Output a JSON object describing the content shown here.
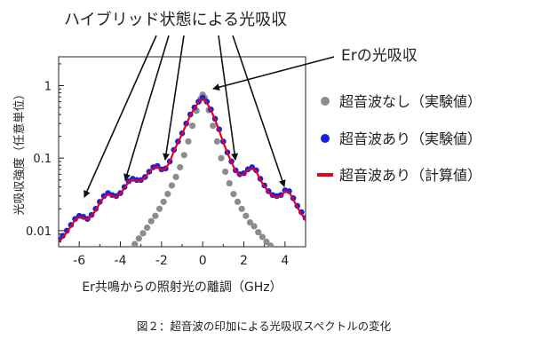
{
  "chart_data": {
    "type": "scatter",
    "annotations": {
      "hybrid": "ハイブリッド状態による光吸収",
      "er": "Erの光吸収"
    },
    "xlabel": "Er共鳴からの照射光の離調（GHz）",
    "ylabel": "光吸収強度（任意単位）",
    "x_ticks": [
      "-6",
      "-4",
      "-2",
      "0",
      "2",
      "4"
    ],
    "y_ticks": [
      "0.01",
      "0.1",
      "1"
    ],
    "xlim": [
      -7,
      5
    ],
    "ylim": [
      0.006,
      2.5
    ],
    "y_scale": "log",
    "legend_position": "right",
    "series": [
      {
        "name": "超音波なし（実験値）",
        "style": "dot",
        "color": "#8c8c8c",
        "x": [
          -3.3,
          -3.1,
          -2.9,
          -2.7,
          -2.5,
          -2.3,
          -2.1,
          -1.9,
          -1.7,
          -1.5,
          -1.3,
          -1.1,
          -0.9,
          -0.7,
          -0.5,
          -0.3,
          -0.1,
          0.0,
          0.1,
          0.3,
          0.5,
          0.7,
          0.9,
          1.1,
          1.3,
          1.5,
          1.7,
          1.9,
          2.1,
          2.3,
          2.5,
          2.7,
          2.9,
          3.1,
          3.3
        ],
        "y": [
          0.0065,
          0.0078,
          0.0092,
          0.011,
          0.0135,
          0.016,
          0.02,
          0.025,
          0.032,
          0.042,
          0.055,
          0.075,
          0.11,
          0.17,
          0.28,
          0.45,
          0.66,
          0.75,
          0.68,
          0.46,
          0.28,
          0.17,
          0.1,
          0.065,
          0.045,
          0.032,
          0.025,
          0.02,
          0.016,
          0.013,
          0.0115,
          0.0095,
          0.0082,
          0.007,
          0.0062
        ]
      },
      {
        "name": "超音波あり（実験値）",
        "style": "dot",
        "color": "#1520e0",
        "x": [
          -7.0,
          -6.8,
          -6.6,
          -6.4,
          -6.2,
          -6.0,
          -5.8,
          -5.6,
          -5.4,
          -5.2,
          -5.0,
          -4.8,
          -4.6,
          -4.4,
          -4.2,
          -4.0,
          -3.8,
          -3.6,
          -3.4,
          -3.2,
          -3.0,
          -2.8,
          -2.6,
          -2.4,
          -2.2,
          -2.0,
          -1.8,
          -1.6,
          -1.4,
          -1.2,
          -1.0,
          -0.8,
          -0.6,
          -0.4,
          -0.2,
          0.0,
          0.2,
          0.4,
          0.6,
          0.8,
          1.0,
          1.2,
          1.4,
          1.6,
          1.8,
          2.0,
          2.2,
          2.4,
          2.6,
          2.8,
          3.0,
          3.2,
          3.4,
          3.6,
          3.8,
          4.0,
          4.2,
          4.4,
          4.6,
          4.8,
          5.0
        ],
        "y": [
          0.0075,
          0.0085,
          0.01,
          0.012,
          0.0145,
          0.016,
          0.0155,
          0.0145,
          0.0165,
          0.02,
          0.025,
          0.03,
          0.033,
          0.031,
          0.03,
          0.033,
          0.04,
          0.048,
          0.052,
          0.05,
          0.05,
          0.055,
          0.065,
          0.075,
          0.078,
          0.07,
          0.072,
          0.09,
          0.13,
          0.17,
          0.22,
          0.3,
          0.4,
          0.5,
          0.6,
          0.68,
          0.6,
          0.47,
          0.35,
          0.25,
          0.17,
          0.12,
          0.09,
          0.068,
          0.06,
          0.062,
          0.07,
          0.075,
          0.068,
          0.052,
          0.042,
          0.035,
          0.031,
          0.03,
          0.031,
          0.036,
          0.035,
          0.028,
          0.022,
          0.018,
          0.015
        ]
      },
      {
        "name": "超音波あり（計算値）",
        "style": "line",
        "color": "#e8001c",
        "x": [
          -7.0,
          -6.8,
          -6.6,
          -6.4,
          -6.2,
          -6.0,
          -5.8,
          -5.6,
          -5.4,
          -5.2,
          -5.0,
          -4.8,
          -4.6,
          -4.4,
          -4.2,
          -4.0,
          -3.8,
          -3.6,
          -3.4,
          -3.2,
          -3.0,
          -2.8,
          -2.6,
          -2.4,
          -2.2,
          -2.0,
          -1.8,
          -1.6,
          -1.4,
          -1.2,
          -1.0,
          -0.8,
          -0.6,
          -0.4,
          -0.2,
          0.0,
          0.2,
          0.4,
          0.6,
          0.8,
          1.0,
          1.2,
          1.4,
          1.6,
          1.8,
          2.0,
          2.2,
          2.4,
          2.6,
          2.8,
          3.0,
          3.2,
          3.4,
          3.6,
          3.8,
          4.0,
          4.2,
          4.4,
          4.6,
          4.8,
          5.0
        ],
        "y": [
          0.007,
          0.008,
          0.0095,
          0.0115,
          0.014,
          0.0155,
          0.015,
          0.0142,
          0.016,
          0.019,
          0.024,
          0.029,
          0.032,
          0.03,
          0.029,
          0.032,
          0.039,
          0.047,
          0.051,
          0.049,
          0.049,
          0.054,
          0.064,
          0.073,
          0.076,
          0.069,
          0.071,
          0.088,
          0.125,
          0.165,
          0.215,
          0.29,
          0.39,
          0.49,
          0.59,
          0.66,
          0.58,
          0.46,
          0.34,
          0.24,
          0.165,
          0.118,
          0.088,
          0.066,
          0.058,
          0.06,
          0.068,
          0.073,
          0.066,
          0.05,
          0.041,
          0.034,
          0.03,
          0.029,
          0.03,
          0.035,
          0.034,
          0.027,
          0.021,
          0.017,
          0.014
        ]
      }
    ]
  },
  "caption": "図２：超音波の印加による光吸収スペクトルの変化"
}
